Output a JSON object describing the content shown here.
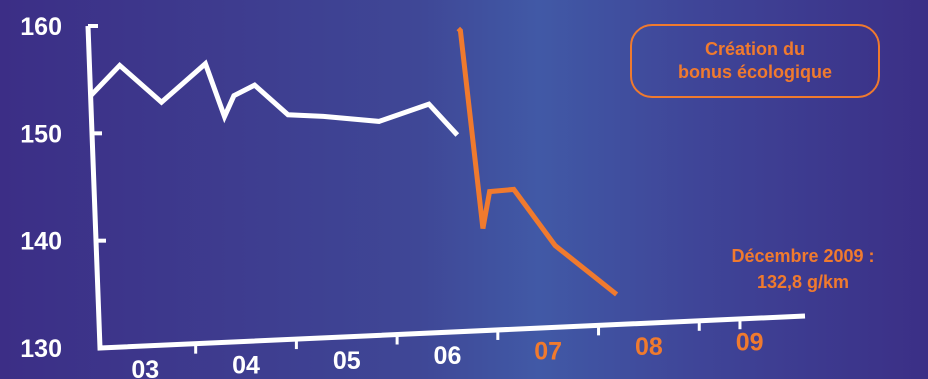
{
  "chart_data": {
    "type": "line",
    "title": "",
    "xlabel": "",
    "ylabel": "",
    "ylim": [
      130,
      160
    ],
    "yticks": [
      130,
      140,
      150,
      160
    ],
    "xlim": [
      2002.55,
      2009.55
    ],
    "x_tick_labels": [
      {
        "label": "03",
        "x": 2003,
        "color": "#ffffff"
      },
      {
        "label": "04",
        "x": 2004,
        "color": "#ffffff"
      },
      {
        "label": "05",
        "x": 2005,
        "color": "#ffffff"
      },
      {
        "label": "06",
        "x": 2006,
        "color": "#ffffff"
      },
      {
        "label": "07",
        "x": 2007,
        "color": "#f07a2e"
      },
      {
        "label": "08",
        "x": 2008,
        "color": "#f07a2e"
      },
      {
        "label": "09",
        "x": 2009,
        "color": "#f07a2e"
      }
    ],
    "series": [
      {
        "color": "#ffffff",
        "x": [
          2002.55,
          2002.85,
          2003.25,
          2003.7,
          2003.87,
          2003.97,
          2004.18,
          2004.5,
          2004.85,
          2005.4,
          2005.9,
          2006.17
        ],
        "y": [
          153.5,
          156.2,
          152.6,
          156.0,
          151.0,
          152.9,
          153.8,
          150.9,
          150.6,
          149.9,
          151.3,
          148.3
        ]
      },
      {
        "color": "#f07a2e",
        "x": [
          2006.22,
          2006.24,
          2006.39,
          2006.47,
          2006.71,
          2007.1,
          2007.69
        ],
        "y": [
          158.2,
          158.0,
          139.5,
          142.9,
          143.0,
          137.6,
          132.8
        ]
      }
    ],
    "annotations": {
      "box_text": [
        "Création du",
        "bonus écologique"
      ],
      "final_text": [
        "Décembre 2009 :",
        "132,8 g/km"
      ]
    }
  }
}
